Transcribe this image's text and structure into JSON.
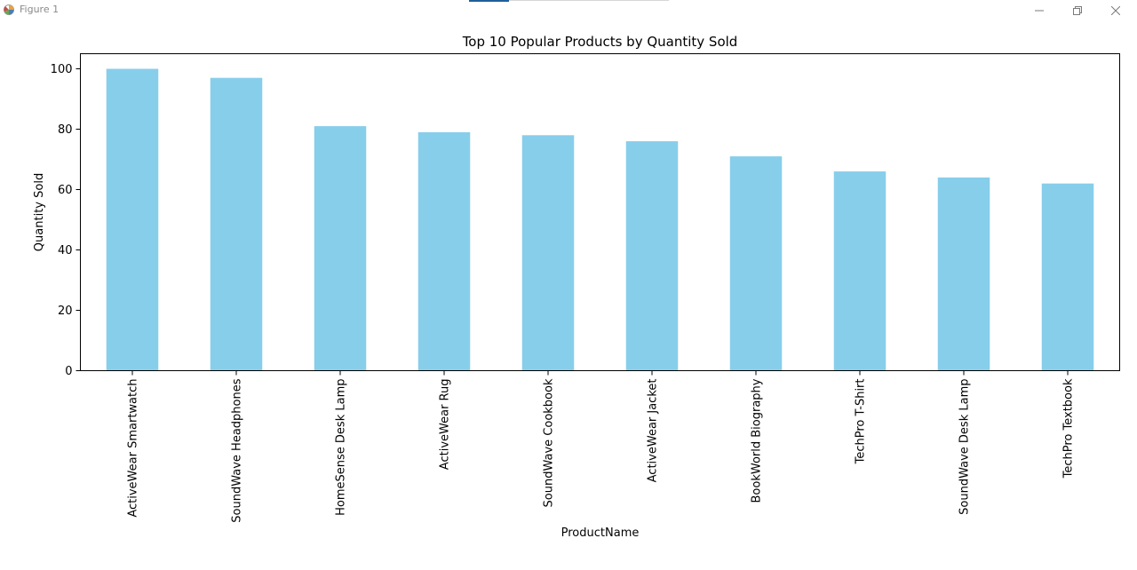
{
  "window": {
    "title": "Figure 1",
    "icons": {
      "app": "matplotlib-icon",
      "minimize": "minimize-icon",
      "maximize": "restore-icon",
      "close": "close-icon"
    }
  },
  "colors": {
    "bar": "#87ceeb",
    "axis": "#000000",
    "title_accent": "#1f5f9a"
  },
  "chart_data": {
    "type": "bar",
    "title": "Top 10 Popular Products by Quantity Sold",
    "xlabel": "ProductName",
    "ylabel": "Quantity Sold",
    "categories": [
      "ActiveWear Smartwatch",
      "SoundWave Headphones",
      "HomeSense Desk Lamp",
      "ActiveWear Rug",
      "SoundWave Cookbook",
      "ActiveWear Jacket",
      "BookWorld Biography",
      "TechPro T-Shirt",
      "SoundWave Desk Lamp",
      "TechPro Textbook"
    ],
    "values": [
      100,
      97,
      81,
      79,
      78,
      76,
      71,
      66,
      64,
      62
    ],
    "ylim": [
      0,
      105
    ],
    "yticks": [
      0,
      20,
      40,
      60,
      80,
      100
    ],
    "grid": false,
    "legend": false
  }
}
